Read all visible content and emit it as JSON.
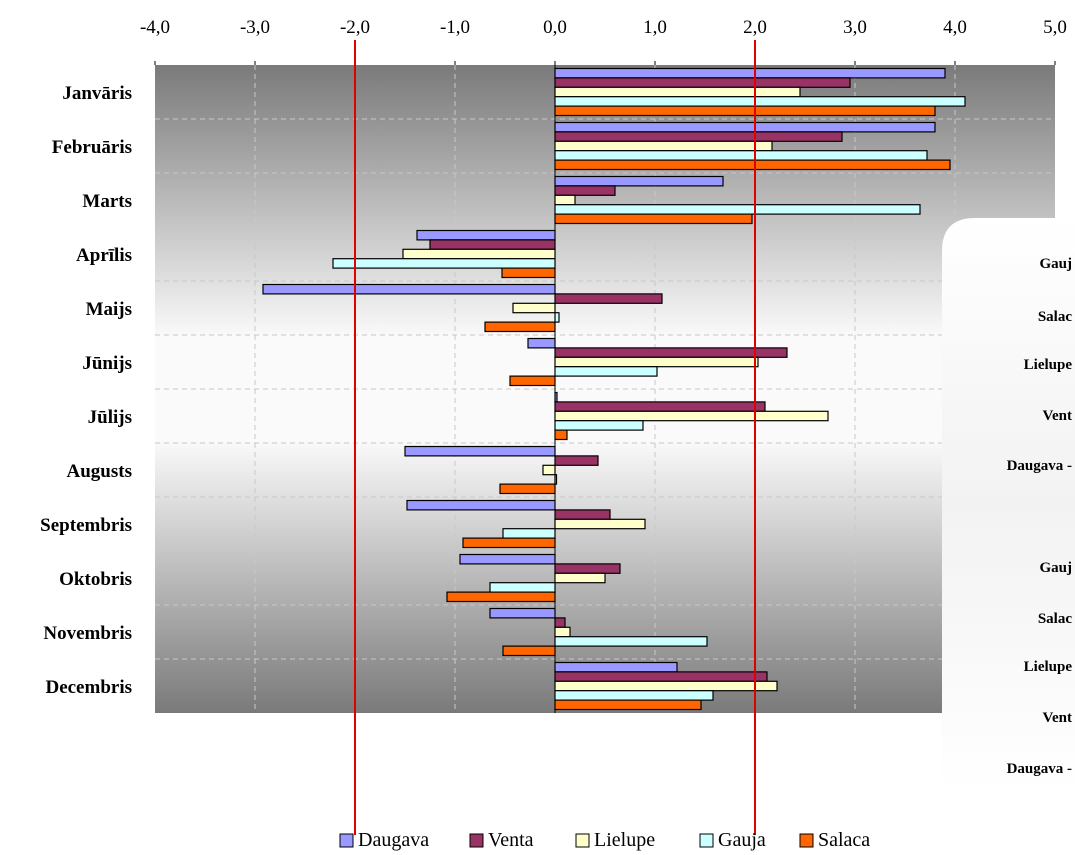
{
  "chart_data": {
    "type": "bar",
    "orientation": "horizontal",
    "categories": [
      "Janvāris",
      "Februāris",
      "Marts",
      "Aprīlis",
      "Maijs",
      "Jūnijs",
      "Jūlijs",
      "Augusts",
      "Septembris",
      "Oktobris",
      "Novembris",
      "Decembris"
    ],
    "xlim": [
      -4.0,
      5.0
    ],
    "x_ticks": [
      "-4,0",
      "-3,0",
      "-2,0",
      "-1,0",
      "0,0",
      "1,0",
      "2,0",
      "3,0",
      "4,0",
      "5,0"
    ],
    "grid": true,
    "legend_position": "bottom",
    "reference_lines": [
      -2.0,
      2.0
    ],
    "series": [
      {
        "name": "Daugava",
        "color": "#9999ff",
        "values": [
          3.9,
          3.8,
          1.68,
          -1.38,
          -2.92,
          -0.27,
          0.02,
          -1.5,
          -1.48,
          -0.95,
          -0.65,
          1.22
        ]
      },
      {
        "name": "Venta",
        "color": "#993366",
        "values": [
          2.95,
          2.87,
          0.6,
          -1.25,
          1.07,
          2.32,
          2.1,
          0.43,
          0.55,
          0.65,
          0.1,
          2.12
        ]
      },
      {
        "name": "Lielupe",
        "color": "#ffffcc",
        "values": [
          2.45,
          2.17,
          0.2,
          -1.52,
          -0.42,
          2.03,
          2.73,
          -0.12,
          0.9,
          0.5,
          0.15,
          2.22
        ]
      },
      {
        "name": "Gauja",
        "color": "#ccffff",
        "values": [
          4.1,
          3.72,
          3.65,
          -2.22,
          0.04,
          1.02,
          0.88,
          0.0,
          -0.52,
          -0.65,
          1.52,
          1.58
        ]
      },
      {
        "name": "Salaca",
        "color": "#ff6600",
        "values": [
          3.8,
          3.95,
          1.97,
          -0.53,
          -0.7,
          -0.45,
          0.12,
          -0.55,
          -0.92,
          -1.08,
          -0.52,
          1.46
        ]
      }
    ]
  },
  "side_panel": {
    "labels": [
      "Gauj",
      "Salac",
      "Lielupe",
      "Vent",
      "Daugava -",
      "Gauj",
      "Salac",
      "Lielupe",
      "Vent",
      "Daugava -"
    ]
  }
}
